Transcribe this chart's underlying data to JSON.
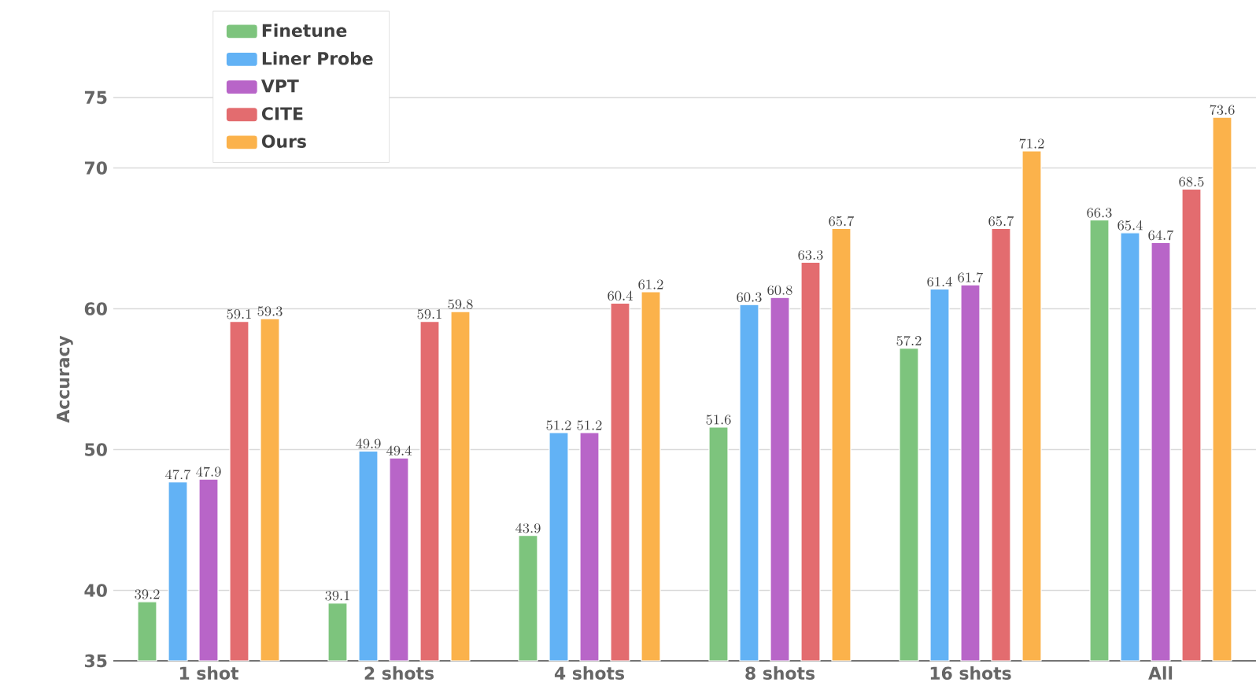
{
  "chart_data": {
    "type": "bar",
    "ylabel": "Accuracy",
    "categories": [
      "1 shot",
      "2 shots",
      "4 shots",
      "8 shots",
      "16 shots",
      "All"
    ],
    "series": [
      {
        "name": "Finetune",
        "color": "#7dc47d",
        "values": [
          39.2,
          39.1,
          43.9,
          51.6,
          57.2,
          66.3
        ]
      },
      {
        "name": "Liner Probe",
        "color": "#62b2f5",
        "values": [
          47.7,
          49.9,
          51.2,
          60.3,
          61.4,
          65.4
        ]
      },
      {
        "name": "VPT",
        "color": "#b865c8",
        "values": [
          47.9,
          49.4,
          51.2,
          60.8,
          61.7,
          64.7
        ]
      },
      {
        "name": "CITE",
        "color": "#e36c6f",
        "values": [
          59.1,
          59.1,
          60.4,
          63.3,
          65.7,
          68.5
        ]
      },
      {
        "name": "Ours",
        "color": "#fbb24b",
        "values": [
          59.3,
          59.8,
          61.2,
          65.7,
          71.2,
          73.6
        ]
      }
    ],
    "ylim": [
      35,
      75
    ],
    "yticks": [
      35,
      40,
      50,
      60,
      70,
      75
    ],
    "grid": "y",
    "legend": "top left",
    "data_labels": true
  }
}
